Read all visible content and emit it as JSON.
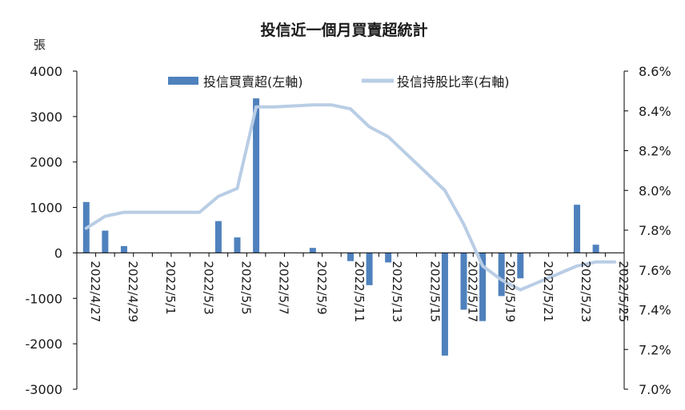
{
  "chart_data": {
    "type": "bar",
    "title": "投信近一個月買賣超統計",
    "ylabel": "張",
    "colors": {
      "bar": "#4f81bd",
      "line": "#b9cde5",
      "axis": "#000000"
    },
    "legend_position": "top",
    "grid": false,
    "dates": [
      "2022/4/27",
      "2022/4/28",
      "2022/4/29",
      "2022/4/30",
      "2022/5/1",
      "2022/5/2",
      "2022/5/3",
      "2022/5/4",
      "2022/5/5",
      "2022/5/6",
      "2022/5/7",
      "2022/5/8",
      "2022/5/9",
      "2022/5/10",
      "2022/5/11",
      "2022/5/12",
      "2022/5/13",
      "2022/5/14",
      "2022/5/15",
      "2022/5/16",
      "2022/5/17",
      "2022/5/18",
      "2022/5/19",
      "2022/5/20",
      "2022/5/21",
      "2022/5/22",
      "2022/5/23",
      "2022/5/24",
      "2022/5/25"
    ],
    "x_tick_labels": [
      "2022/4/27",
      "2022/4/29",
      "2022/5/1",
      "2022/5/3",
      "2022/5/5",
      "2022/5/7",
      "2022/5/9",
      "2022/5/11",
      "2022/5/13",
      "2022/5/15",
      "2022/5/17",
      "2022/5/19",
      "2022/5/21",
      "2022/5/23",
      "2022/5/25"
    ],
    "ylim_left": [
      -3000,
      4000
    ],
    "ylim_right": [
      7.0,
      8.6
    ],
    "left_ticks": [
      "4000",
      "3000",
      "2000",
      "1000",
      "0",
      "-1000",
      "-2000",
      "-3000"
    ],
    "right_ticks": [
      "8.6%",
      "8.4%",
      "8.2%",
      "8.0%",
      "7.8%",
      "7.6%",
      "7.4%",
      "7.2%",
      "7.0%"
    ],
    "series": [
      {
        "name": "投信買賣超(左軸)",
        "type": "bar",
        "axis": "left",
        "values": [
          1120,
          490,
          150,
          0,
          0,
          0,
          0,
          700,
          340,
          3400,
          0,
          0,
          110,
          0,
          -180,
          -710,
          -210,
          0,
          0,
          -2260,
          -1250,
          -1500,
          -950,
          -560,
          0,
          0,
          1060,
          180,
          0
        ]
      },
      {
        "name": "投信持股比率(右軸)",
        "type": "line",
        "axis": "right",
        "values": [
          7.81,
          7.87,
          7.89,
          7.89,
          7.89,
          7.89,
          7.89,
          7.97,
          8.01,
          8.42,
          8.42,
          8.425,
          8.43,
          8.43,
          8.41,
          8.32,
          8.27,
          8.18,
          8.09,
          8.0,
          7.83,
          7.62,
          7.55,
          7.5,
          7.54,
          7.58,
          7.62,
          7.64,
          7.64
        ]
      }
    ]
  }
}
